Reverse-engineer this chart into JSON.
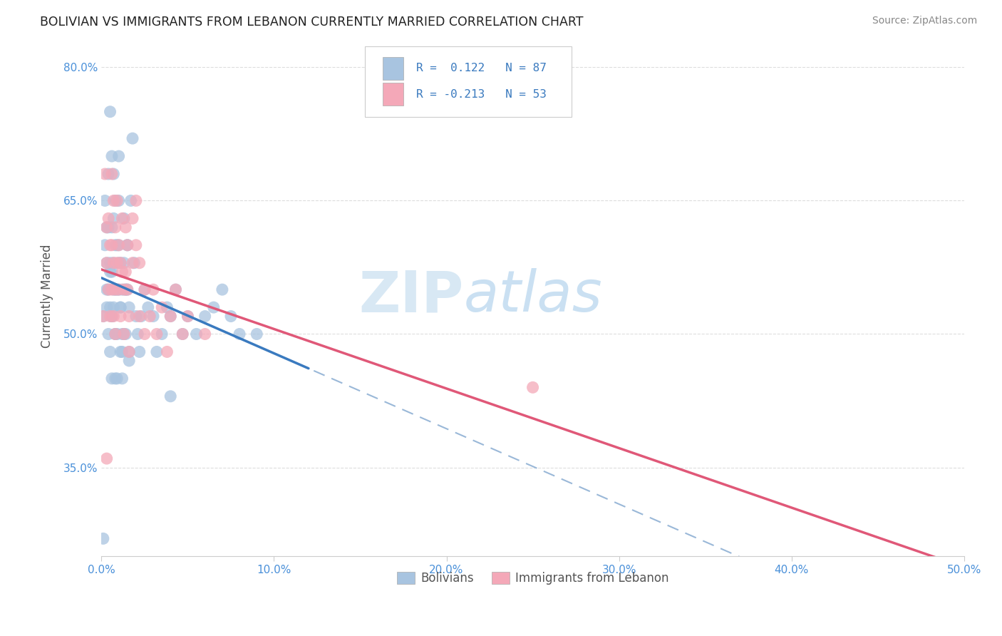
{
  "title": "BOLIVIAN VS IMMIGRANTS FROM LEBANON CURRENTLY MARRIED CORRELATION CHART",
  "source": "Source: ZipAtlas.com",
  "ylabel_label": "Currently Married",
  "x_min": 0.0,
  "x_max": 0.5,
  "y_min": 0.25,
  "y_max": 0.835,
  "x_ticks": [
    0.0,
    0.1,
    0.2,
    0.3,
    0.4,
    0.5
  ],
  "x_tick_labels": [
    "0.0%",
    "10.0%",
    "20.0%",
    "30.0%",
    "40.0%",
    "50.0%"
  ],
  "y_ticks": [
    0.35,
    0.5,
    0.65,
    0.8
  ],
  "y_tick_labels": [
    "35.0%",
    "50.0%",
    "65.0%",
    "80.0%"
  ],
  "bolivians_color": "#a8c4e0",
  "lebanon_color": "#f4a8b8",
  "trend_bolivians_color": "#3a7abf",
  "trend_lebanon_color": "#e05878",
  "trend_dash_color": "#9ab8d8",
  "watermark_zip": "ZIP",
  "watermark_atlas": "atlas",
  "background_color": "#ffffff",
  "grid_color": "#dddddd",
  "bolivians_x": [
    0.001,
    0.002,
    0.002,
    0.003,
    0.003,
    0.003,
    0.004,
    0.004,
    0.004,
    0.005,
    0.005,
    0.005,
    0.005,
    0.006,
    0.006,
    0.006,
    0.006,
    0.006,
    0.007,
    0.007,
    0.007,
    0.007,
    0.008,
    0.008,
    0.008,
    0.008,
    0.008,
    0.009,
    0.009,
    0.009,
    0.01,
    0.01,
    0.01,
    0.01,
    0.011,
    0.011,
    0.011,
    0.012,
    0.012,
    0.012,
    0.013,
    0.013,
    0.014,
    0.014,
    0.015,
    0.015,
    0.016,
    0.016,
    0.017,
    0.018,
    0.019,
    0.02,
    0.021,
    0.022,
    0.023,
    0.025,
    0.027,
    0.03,
    0.032,
    0.035,
    0.038,
    0.04,
    0.043,
    0.047,
    0.05,
    0.055,
    0.06,
    0.065,
    0.07,
    0.075,
    0.08,
    0.09,
    0.003,
    0.004,
    0.005,
    0.006,
    0.007,
    0.008,
    0.009,
    0.01,
    0.011,
    0.012,
    0.013,
    0.014,
    0.015,
    0.016,
    0.04,
    0.001
  ],
  "bolivians_y": [
    0.52,
    0.65,
    0.6,
    0.55,
    0.62,
    0.58,
    0.68,
    0.55,
    0.5,
    0.75,
    0.58,
    0.53,
    0.48,
    0.62,
    0.7,
    0.57,
    0.52,
    0.45,
    0.68,
    0.63,
    0.58,
    0.53,
    0.65,
    0.6,
    0.55,
    0.5,
    0.45,
    0.6,
    0.55,
    0.5,
    0.7,
    0.65,
    0.6,
    0.55,
    0.58,
    0.53,
    0.48,
    0.55,
    0.5,
    0.45,
    0.63,
    0.58,
    0.55,
    0.5,
    0.6,
    0.55,
    0.53,
    0.48,
    0.65,
    0.72,
    0.58,
    0.52,
    0.5,
    0.48,
    0.52,
    0.55,
    0.53,
    0.52,
    0.48,
    0.5,
    0.53,
    0.52,
    0.55,
    0.5,
    0.52,
    0.5,
    0.52,
    0.53,
    0.55,
    0.52,
    0.5,
    0.5,
    0.53,
    0.62,
    0.57,
    0.52,
    0.55,
    0.5,
    0.45,
    0.58,
    0.53,
    0.48,
    0.5,
    0.55,
    0.6,
    0.47,
    0.43,
    0.27
  ],
  "lebanon_x": [
    0.001,
    0.002,
    0.003,
    0.003,
    0.004,
    0.004,
    0.005,
    0.005,
    0.006,
    0.006,
    0.006,
    0.007,
    0.007,
    0.007,
    0.008,
    0.008,
    0.008,
    0.009,
    0.009,
    0.01,
    0.01,
    0.011,
    0.011,
    0.012,
    0.012,
    0.013,
    0.013,
    0.014,
    0.014,
    0.015,
    0.015,
    0.016,
    0.016,
    0.018,
    0.018,
    0.02,
    0.02,
    0.022,
    0.022,
    0.025,
    0.025,
    0.028,
    0.03,
    0.032,
    0.035,
    0.038,
    0.04,
    0.043,
    0.047,
    0.05,
    0.06,
    0.25,
    0.003
  ],
  "lebanon_y": [
    0.52,
    0.68,
    0.62,
    0.58,
    0.63,
    0.55,
    0.6,
    0.52,
    0.68,
    0.6,
    0.55,
    0.65,
    0.58,
    0.52,
    0.62,
    0.55,
    0.5,
    0.65,
    0.58,
    0.6,
    0.55,
    0.58,
    0.52,
    0.63,
    0.57,
    0.55,
    0.5,
    0.62,
    0.57,
    0.6,
    0.55,
    0.52,
    0.48,
    0.63,
    0.58,
    0.65,
    0.6,
    0.58,
    0.52,
    0.55,
    0.5,
    0.52,
    0.55,
    0.5,
    0.53,
    0.48,
    0.52,
    0.55,
    0.5,
    0.52,
    0.5,
    0.44,
    0.36
  ],
  "blue_line_x_end": 0.12,
  "leb_line_x_start": 0.0,
  "leb_line_x_end": 0.5
}
